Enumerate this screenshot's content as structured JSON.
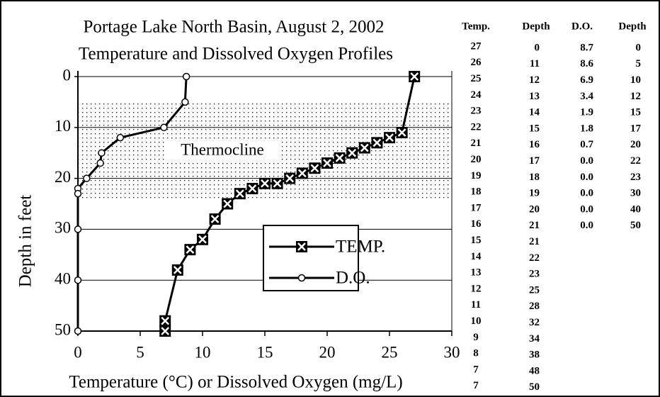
{
  "chart_data": {
    "type": "line",
    "title": "Portage Lake North Basin, August 2, 2002",
    "subtitle": "Temperature and Dissolved Oxygen Profiles",
    "x_label": "Temperature (°C) or Dissolved Oxygen (mg/L)",
    "y_label": "Depth in feet",
    "xlim": [
      0,
      30
    ],
    "xticks": [
      0,
      5,
      10,
      15,
      20,
      25,
      30
    ],
    "ylim": [
      50,
      0
    ],
    "yticks": [
      0,
      10,
      20,
      30,
      40,
      50
    ],
    "grid": true,
    "annotation": {
      "text": "Thermocline",
      "range": [
        5,
        24
      ]
    },
    "legend": "center",
    "table_headers": [
      "Temp.",
      "Depth",
      "D.O.",
      "Depth"
    ],
    "series": [
      {
        "name": "TEMP.",
        "color": "#000000",
        "marker": "square-x",
        "x": [
          27,
          26,
          25,
          24,
          23,
          22,
          21,
          20,
          19,
          18,
          17,
          16,
          15,
          14,
          13,
          12,
          11,
          10,
          9,
          8,
          7,
          7
        ],
        "values": [
          0,
          11,
          12,
          13,
          14,
          15,
          16,
          17,
          18,
          19,
          20,
          21,
          21,
          22,
          23,
          25,
          28,
          32,
          34,
          38,
          48,
          50
        ]
      },
      {
        "name": "D.O.",
        "color": "#000000",
        "marker": "circle",
        "x": [
          8.7,
          8.6,
          6.9,
          3.4,
          1.9,
          1.8,
          0.7,
          0,
          0,
          0,
          0,
          0
        ],
        "x_labels": [
          "8.7",
          "8.6",
          "6.9",
          "3.4",
          "1.9",
          "1.8",
          "0.7",
          "0.0",
          "0.0",
          "0.0",
          "0.0",
          "0.0"
        ],
        "values": [
          0,
          5,
          10,
          12,
          15,
          17,
          20,
          22,
          23,
          30,
          40,
          50
        ]
      }
    ]
  }
}
